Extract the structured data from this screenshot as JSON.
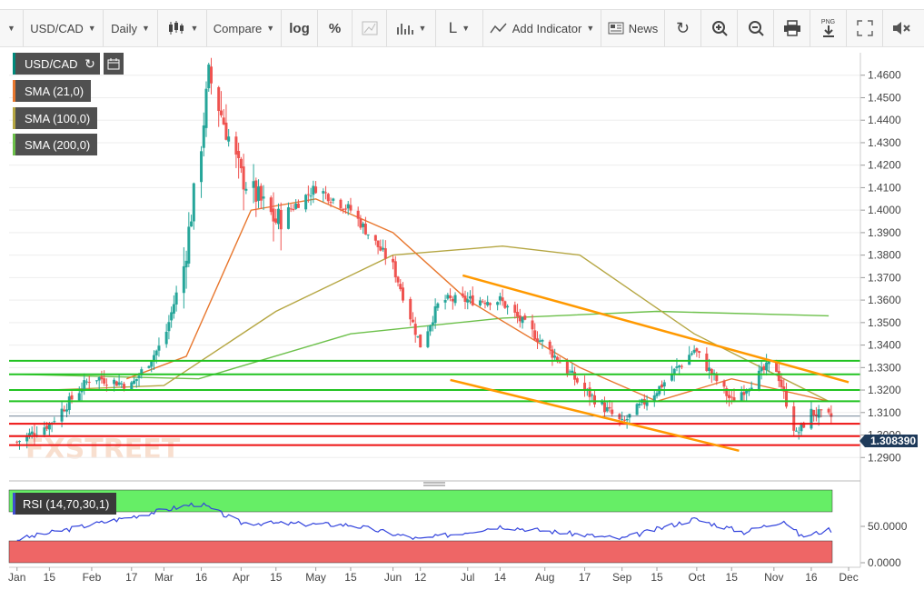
{
  "toolbar": {
    "symbol": "USD/CAD",
    "interval": "Daily",
    "compare": "Compare",
    "log": "log",
    "percent": "%",
    "line_type": "L",
    "add_indicator": "Add Indicator",
    "news": "News",
    "png": "PNG"
  },
  "legend": {
    "symbol": "USD/CAD",
    "sma21": "SMA (21,0)",
    "sma100": "SMA (100,0)",
    "sma200": "SMA (200,0)",
    "rsi": "RSI (14,70,30,1)"
  },
  "watermark": "FXSTREET",
  "colors": {
    "up": "#26a69a",
    "down": "#ef5350",
    "sma21": "#e8772e",
    "sma100": "#b5a642",
    "sma200": "#6cc04a",
    "support_resistance_green": "#22c322",
    "support_resistance_red": "#ee1111",
    "trend_channel": "#ff9900",
    "rsi_line": "#3344dd",
    "rsi_overbought_zone": "#66ee66",
    "rsi_oversold_zone": "#ee6666"
  },
  "chart_data": [
    {
      "type": "candlestick",
      "title": "USD/CAD",
      "interval": "Daily",
      "ylim": [
        1.28,
        1.47
      ],
      "y_ticks": [
        "1.2900",
        "1.3000",
        "1.3100",
        "1.3200",
        "1.3300",
        "1.3400",
        "1.3500",
        "1.3600",
        "1.3700",
        "1.3800",
        "1.3900",
        "1.4000",
        "1.4100",
        "1.4200",
        "1.4300",
        "1.4400",
        "1.4500",
        "1.4600"
      ],
      "x_ticks": [
        "Jan",
        "15",
        "Feb",
        "17",
        "Mar",
        "16",
        "Apr",
        "15",
        "May",
        "15",
        "Jun",
        "12",
        "Jul",
        "14",
        "Aug",
        "17",
        "Sep",
        "15",
        "Oct",
        "15",
        "Nov",
        "16",
        "Dec"
      ],
      "last_price": "1.308390",
      "close_series_approx": [
        [
          "2020-01-02",
          1.297
        ],
        [
          "2020-01-15",
          1.305
        ],
        [
          "2020-02-01",
          1.326
        ],
        [
          "2020-02-17",
          1.322
        ],
        [
          "2020-03-01",
          1.342
        ],
        [
          "2020-03-09",
          1.375
        ],
        [
          "2020-03-16",
          1.43
        ],
        [
          "2020-03-19",
          1.46
        ],
        [
          "2020-04-01",
          1.415
        ],
        [
          "2020-04-15",
          1.395
        ],
        [
          "2020-05-01",
          1.41
        ],
        [
          "2020-05-15",
          1.4
        ],
        [
          "2020-06-01",
          1.375
        ],
        [
          "2020-06-12",
          1.34
        ],
        [
          "2020-06-20",
          1.36
        ],
        [
          "2020-07-01",
          1.36
        ],
        [
          "2020-07-14",
          1.36
        ],
        [
          "2020-08-01",
          1.34
        ],
        [
          "2020-08-17",
          1.32
        ],
        [
          "2020-09-01",
          1.305
        ],
        [
          "2020-09-15",
          1.32
        ],
        [
          "2020-09-30",
          1.338
        ],
        [
          "2020-10-15",
          1.315
        ],
        [
          "2020-11-01",
          1.333
        ],
        [
          "2020-11-10",
          1.3
        ],
        [
          "2020-11-16",
          1.31
        ],
        [
          "2020-11-23",
          1.308
        ]
      ],
      "horizontal_levels_green": [
        1.333,
        1.327,
        1.32,
        1.315
      ],
      "horizontal_levels_red": [
        1.305,
        1.2995,
        1.2955
      ],
      "trendlines": [
        {
          "from": [
            "2020-06-29",
            1.371
          ],
          "to": [
            "2020-12-01",
            1.3235
          ]
        },
        {
          "from": [
            "2020-06-24",
            1.3245
          ],
          "to": [
            "2020-10-18",
            1.293
          ]
        }
      ],
      "sma21_approx": [
        [
          "2020-02-15",
          1.325
        ],
        [
          "2020-03-10",
          1.335
        ],
        [
          "2020-04-05",
          1.4
        ],
        [
          "2020-05-01",
          1.405
        ],
        [
          "2020-06-01",
          1.39
        ],
        [
          "2020-07-01",
          1.36
        ],
        [
          "2020-08-15",
          1.33
        ],
        [
          "2020-09-15",
          1.315
        ],
        [
          "2020-10-15",
          1.325
        ],
        [
          "2020-11-23",
          1.315
        ]
      ],
      "sma100_approx": [
        [
          "2020-01-15",
          1.32
        ],
        [
          "2020-03-01",
          1.322
        ],
        [
          "2020-04-15",
          1.355
        ],
        [
          "2020-06-01",
          1.38
        ],
        [
          "2020-07-15",
          1.384
        ],
        [
          "2020-08-15",
          1.38
        ],
        [
          "2020-09-30",
          1.345
        ],
        [
          "2020-11-23",
          1.315
        ]
      ],
      "sma200_approx": [
        [
          "2020-01-01",
          1.327
        ],
        [
          "2020-03-15",
          1.325
        ],
        [
          "2020-05-15",
          1.345
        ],
        [
          "2020-07-15",
          1.352
        ],
        [
          "2020-09-15",
          1.355
        ],
        [
          "2020-11-23",
          1.353
        ]
      ]
    },
    {
      "type": "line",
      "title": "RSI (14,70,30,1)",
      "ylim": [
        0,
        100
      ],
      "y_ticks": [
        "0.0000",
        "50.0000"
      ],
      "overbought": 70,
      "oversold": 30,
      "values_approx": [
        [
          "2020-01-02",
          32
        ],
        [
          "2020-02-15",
          62
        ],
        [
          "2020-03-15",
          82
        ],
        [
          "2020-04-01",
          55
        ],
        [
          "2020-05-15",
          52
        ],
        [
          "2020-06-12",
          32
        ],
        [
          "2020-07-14",
          50
        ],
        [
          "2020-09-01",
          33
        ],
        [
          "2020-09-30",
          60
        ],
        [
          "2020-10-20",
          42
        ],
        [
          "2020-11-05",
          58
        ],
        [
          "2020-11-12",
          36
        ],
        [
          "2020-11-23",
          45
        ]
      ]
    }
  ]
}
